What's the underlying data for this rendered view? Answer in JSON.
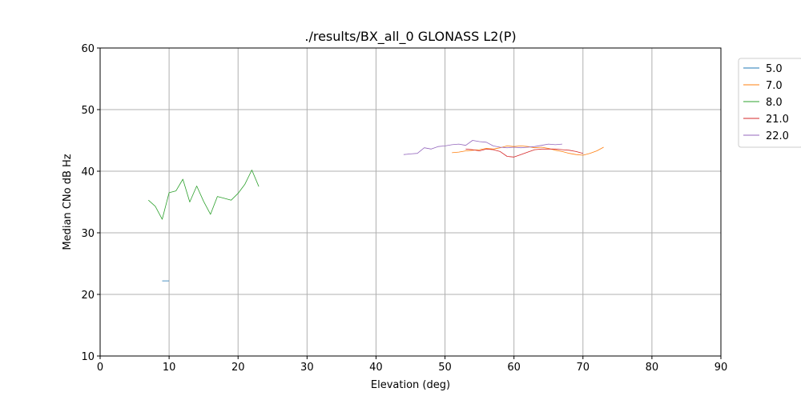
{
  "chart_data": {
    "type": "line",
    "title": "./results/BX_all_0 GLONASS L2(P)",
    "xlabel": "Elevation (deg)",
    "ylabel": "Median CNo dB Hz",
    "xlim": [
      0,
      90
    ],
    "ylim": [
      10,
      60
    ],
    "xticks": [
      0,
      10,
      20,
      30,
      40,
      50,
      60,
      70,
      80,
      90
    ],
    "yticks": [
      10,
      20,
      30,
      40,
      50,
      60
    ],
    "grid": true,
    "legend_placement": "outside-top-right",
    "series": [
      {
        "name": "5.0",
        "color": "#1f77b4",
        "x": [
          9,
          10
        ],
        "y": [
          22.2,
          22.2
        ]
      },
      {
        "name": "7.0",
        "color": "#ff7f0e",
        "x": [
          51,
          52,
          53,
          54,
          55,
          56,
          57,
          58,
          59,
          60,
          61,
          62,
          63,
          64,
          65,
          66,
          67,
          68,
          69,
          70,
          71,
          72,
          73
        ],
        "y": [
          43.0,
          43.1,
          43.3,
          43.4,
          43.5,
          43.7,
          43.6,
          43.8,
          44.1,
          44.0,
          44.1,
          44.0,
          43.8,
          43.9,
          43.7,
          43.4,
          43.2,
          42.9,
          42.7,
          42.6,
          42.9,
          43.3,
          43.9
        ]
      },
      {
        "name": "8.0",
        "color": "#2ca02c",
        "x": [
          7,
          8,
          9,
          10,
          11,
          12,
          13,
          14,
          15,
          16,
          17,
          18,
          19,
          20,
          21,
          22,
          23
        ],
        "y": [
          35.3,
          34.3,
          32.2,
          36.5,
          36.8,
          38.7,
          35.0,
          37.6,
          35.1,
          33.0,
          35.9,
          35.6,
          35.3,
          36.4,
          37.9,
          40.2,
          37.5
        ]
      },
      {
        "name": "21.0",
        "color": "#d62728",
        "x": [
          53,
          54,
          55,
          56,
          57,
          58,
          59,
          60,
          61,
          62,
          63,
          64,
          65,
          66,
          67,
          68,
          69,
          70
        ],
        "y": [
          43.6,
          43.5,
          43.3,
          43.6,
          43.5,
          43.2,
          42.4,
          42.3,
          42.7,
          43.1,
          43.5,
          43.6,
          43.6,
          43.6,
          43.5,
          43.4,
          43.2,
          42.9
        ]
      },
      {
        "name": "22.0",
        "color": "#9467bd",
        "x": [
          44,
          45,
          46,
          47,
          48,
          49,
          50,
          51,
          52,
          53,
          54,
          55,
          56,
          57,
          58,
          59,
          60,
          61,
          62,
          63,
          64,
          65,
          66,
          67
        ],
        "y": [
          42.7,
          42.8,
          42.9,
          43.8,
          43.6,
          44.0,
          44.1,
          44.3,
          44.4,
          44.2,
          45.0,
          44.8,
          44.7,
          44.1,
          43.9,
          43.8,
          43.9,
          43.8,
          43.9,
          44.0,
          44.2,
          44.4,
          44.3,
          44.4
        ]
      }
    ]
  }
}
